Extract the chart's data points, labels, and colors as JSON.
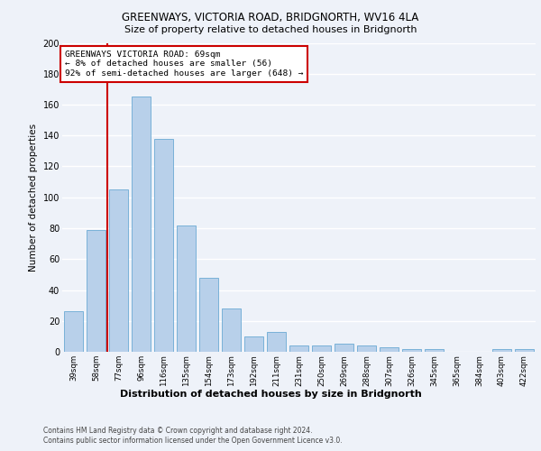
{
  "title1": "GREENWAYS, VICTORIA ROAD, BRIDGNORTH, WV16 4LA",
  "title2": "Size of property relative to detached houses in Bridgnorth",
  "xlabel": "Distribution of detached houses by size in Bridgnorth",
  "ylabel": "Number of detached properties",
  "bar_labels": [
    "39sqm",
    "58sqm",
    "77sqm",
    "96sqm",
    "116sqm",
    "135sqm",
    "154sqm",
    "173sqm",
    "192sqm",
    "211sqm",
    "231sqm",
    "250sqm",
    "269sqm",
    "288sqm",
    "307sqm",
    "326sqm",
    "345sqm",
    "365sqm",
    "384sqm",
    "403sqm",
    "422sqm"
  ],
  "bar_values": [
    26,
    79,
    105,
    165,
    138,
    82,
    48,
    28,
    10,
    13,
    4,
    4,
    5,
    4,
    3,
    2,
    2,
    0,
    0,
    2,
    2
  ],
  "bar_color": "#b8d0ea",
  "bar_edgecolor": "#6aaad4",
  "ylim": [
    0,
    200
  ],
  "yticks": [
    0,
    20,
    40,
    60,
    80,
    100,
    120,
    140,
    160,
    180,
    200
  ],
  "vline_x": 1.5,
  "vline_color": "#cc0000",
  "annotation_title": "GREENWAYS VICTORIA ROAD: 69sqm",
  "annotation_line1": "← 8% of detached houses are smaller (56)",
  "annotation_line2": "92% of semi-detached houses are larger (648) →",
  "annotation_box_facecolor": "#ffffff",
  "annotation_box_edgecolor": "#cc0000",
  "footer1": "Contains HM Land Registry data © Crown copyright and database right 2024.",
  "footer2": "Contains public sector information licensed under the Open Government Licence v3.0.",
  "bg_color": "#eef2f9",
  "grid_color": "#ffffff"
}
